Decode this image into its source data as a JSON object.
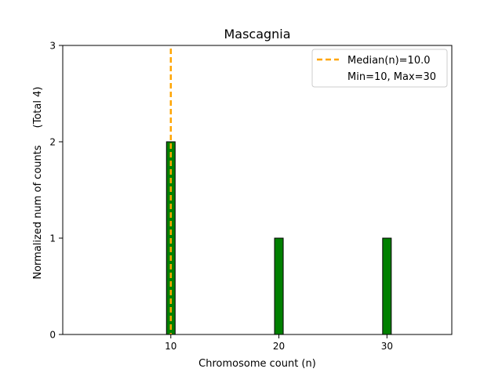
{
  "chart_data": {
    "type": "bar",
    "title": "Mascagnia",
    "xlabel": "Chromosome count (n)",
    "ylabel": "Normalized num of counts",
    "ylabel_note": "(Total 4)",
    "xlim": [
      0,
      36
    ],
    "ylim": [
      0,
      3
    ],
    "xticks": [
      10,
      20,
      30
    ],
    "yticks": [
      0,
      1,
      2,
      3
    ],
    "bar_width": 0.8,
    "bars": [
      {
        "x": 10,
        "value": 2
      },
      {
        "x": 20,
        "value": 1
      },
      {
        "x": 30,
        "value": 1
      }
    ],
    "median": 10.0,
    "legend": {
      "position": "top-right",
      "entries": [
        "Median(n)=10.0",
        "Min=10, Max=30"
      ]
    },
    "colors": {
      "bar_fill": "#008000",
      "bar_edge": "#000000",
      "median_line": "#FFA500"
    }
  }
}
